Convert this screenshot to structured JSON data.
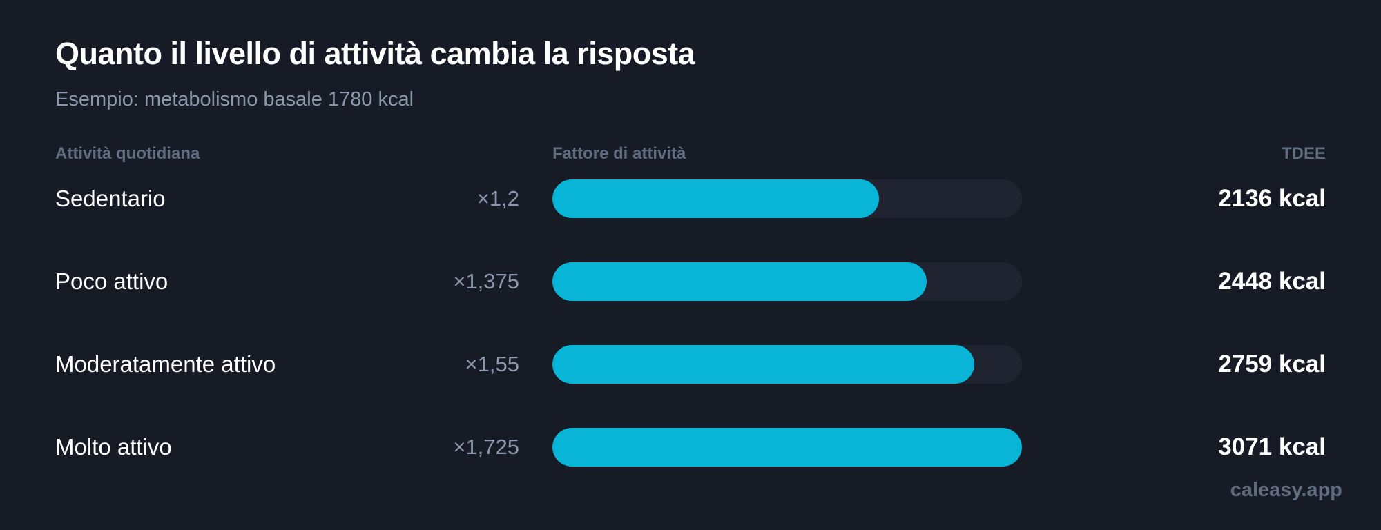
{
  "title": "Quanto il livello di attività cambia la risposta",
  "subtitle": "Esempio: metabolismo basale 1780 kcal",
  "headers": {
    "activity": "Attività quotidiana",
    "factor": "Fattore di attività",
    "tdee": "TDEE"
  },
  "watermark": "caleasy.app",
  "colors": {
    "background": "#171b26",
    "bar": "#08b5d6",
    "track": "#1f2430"
  },
  "chart_data": {
    "type": "bar",
    "orientation": "horizontal",
    "categories": [
      "Sedentario",
      "Poco attivo",
      "Moderatamente attivo",
      "Molto attivo"
    ],
    "factor_labels": [
      "×1,2",
      "×1,375",
      "×1,55",
      "×1,725"
    ],
    "factors": [
      1.2,
      1.375,
      1.55,
      1.725
    ],
    "values": [
      2136,
      2448,
      2759,
      3071
    ],
    "value_labels": [
      "2136 kcal",
      "2448 kcal",
      "2759 kcal",
      "3071 kcal"
    ],
    "unit": "kcal",
    "xlim": [
      0,
      3071
    ]
  }
}
